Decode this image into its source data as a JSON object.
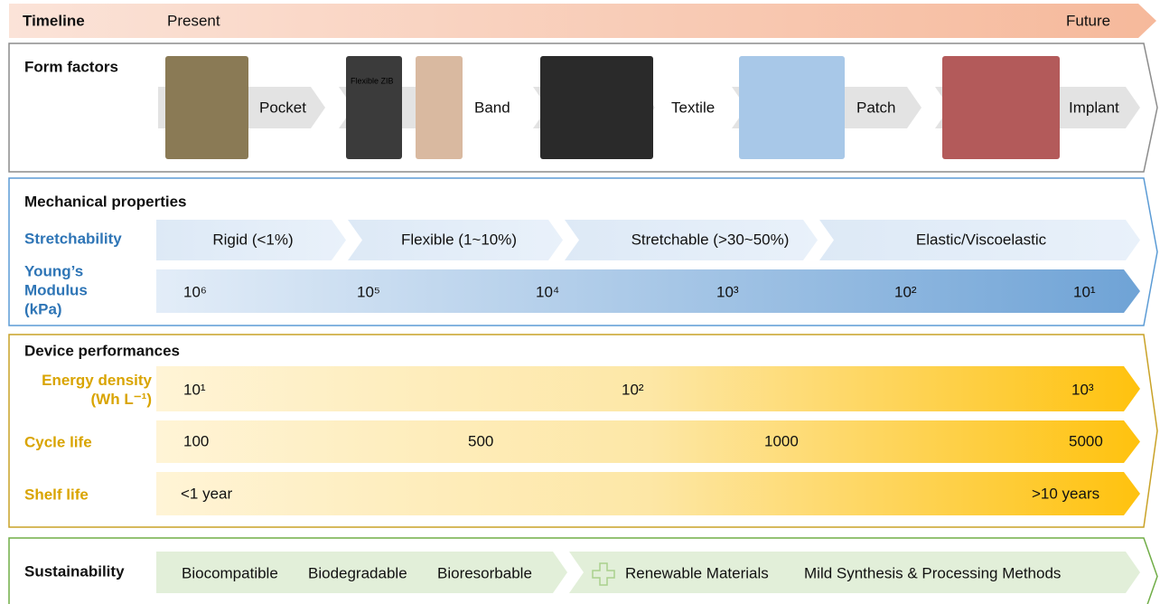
{
  "timeline": {
    "label": "Timeline",
    "start": "Present",
    "end": "Future"
  },
  "form_factors": {
    "title": "Form factors",
    "items": [
      "Pocket",
      "Band",
      "Textile",
      "Patch",
      "Implant"
    ],
    "image_caption": "Flexible ZIB"
  },
  "mechanical": {
    "title": "Mechanical properties",
    "stretchability": {
      "label": "Stretchability",
      "items": [
        "Rigid (<1%)",
        "Flexible (1~10%)",
        "Stretchable (>30~50%)",
        "Elastic/Viscoelastic"
      ]
    },
    "modulus": {
      "label": "Young’s Modulus (kPa)",
      "items": [
        "10⁶",
        "10⁵",
        "10⁴",
        "10³",
        "10²",
        "10¹"
      ]
    }
  },
  "device": {
    "title": "Device performances",
    "energy": {
      "label": "Energy density (Wh L⁻¹)",
      "items": [
        "10¹",
        "10²",
        "10³"
      ]
    },
    "cycle": {
      "label": "Cycle life",
      "items": [
        "100",
        "500",
        "1000",
        "5000"
      ]
    },
    "shelf": {
      "label": "Shelf life",
      "items": [
        "<1 year",
        ">10 years"
      ]
    }
  },
  "sustainability": {
    "title": "Sustainability",
    "items": [
      "Biocompatible",
      "Biodegradable",
      "Bioresorbable",
      "Renewable Materials",
      "Mild Synthesis & Processing Methods"
    ]
  }
}
